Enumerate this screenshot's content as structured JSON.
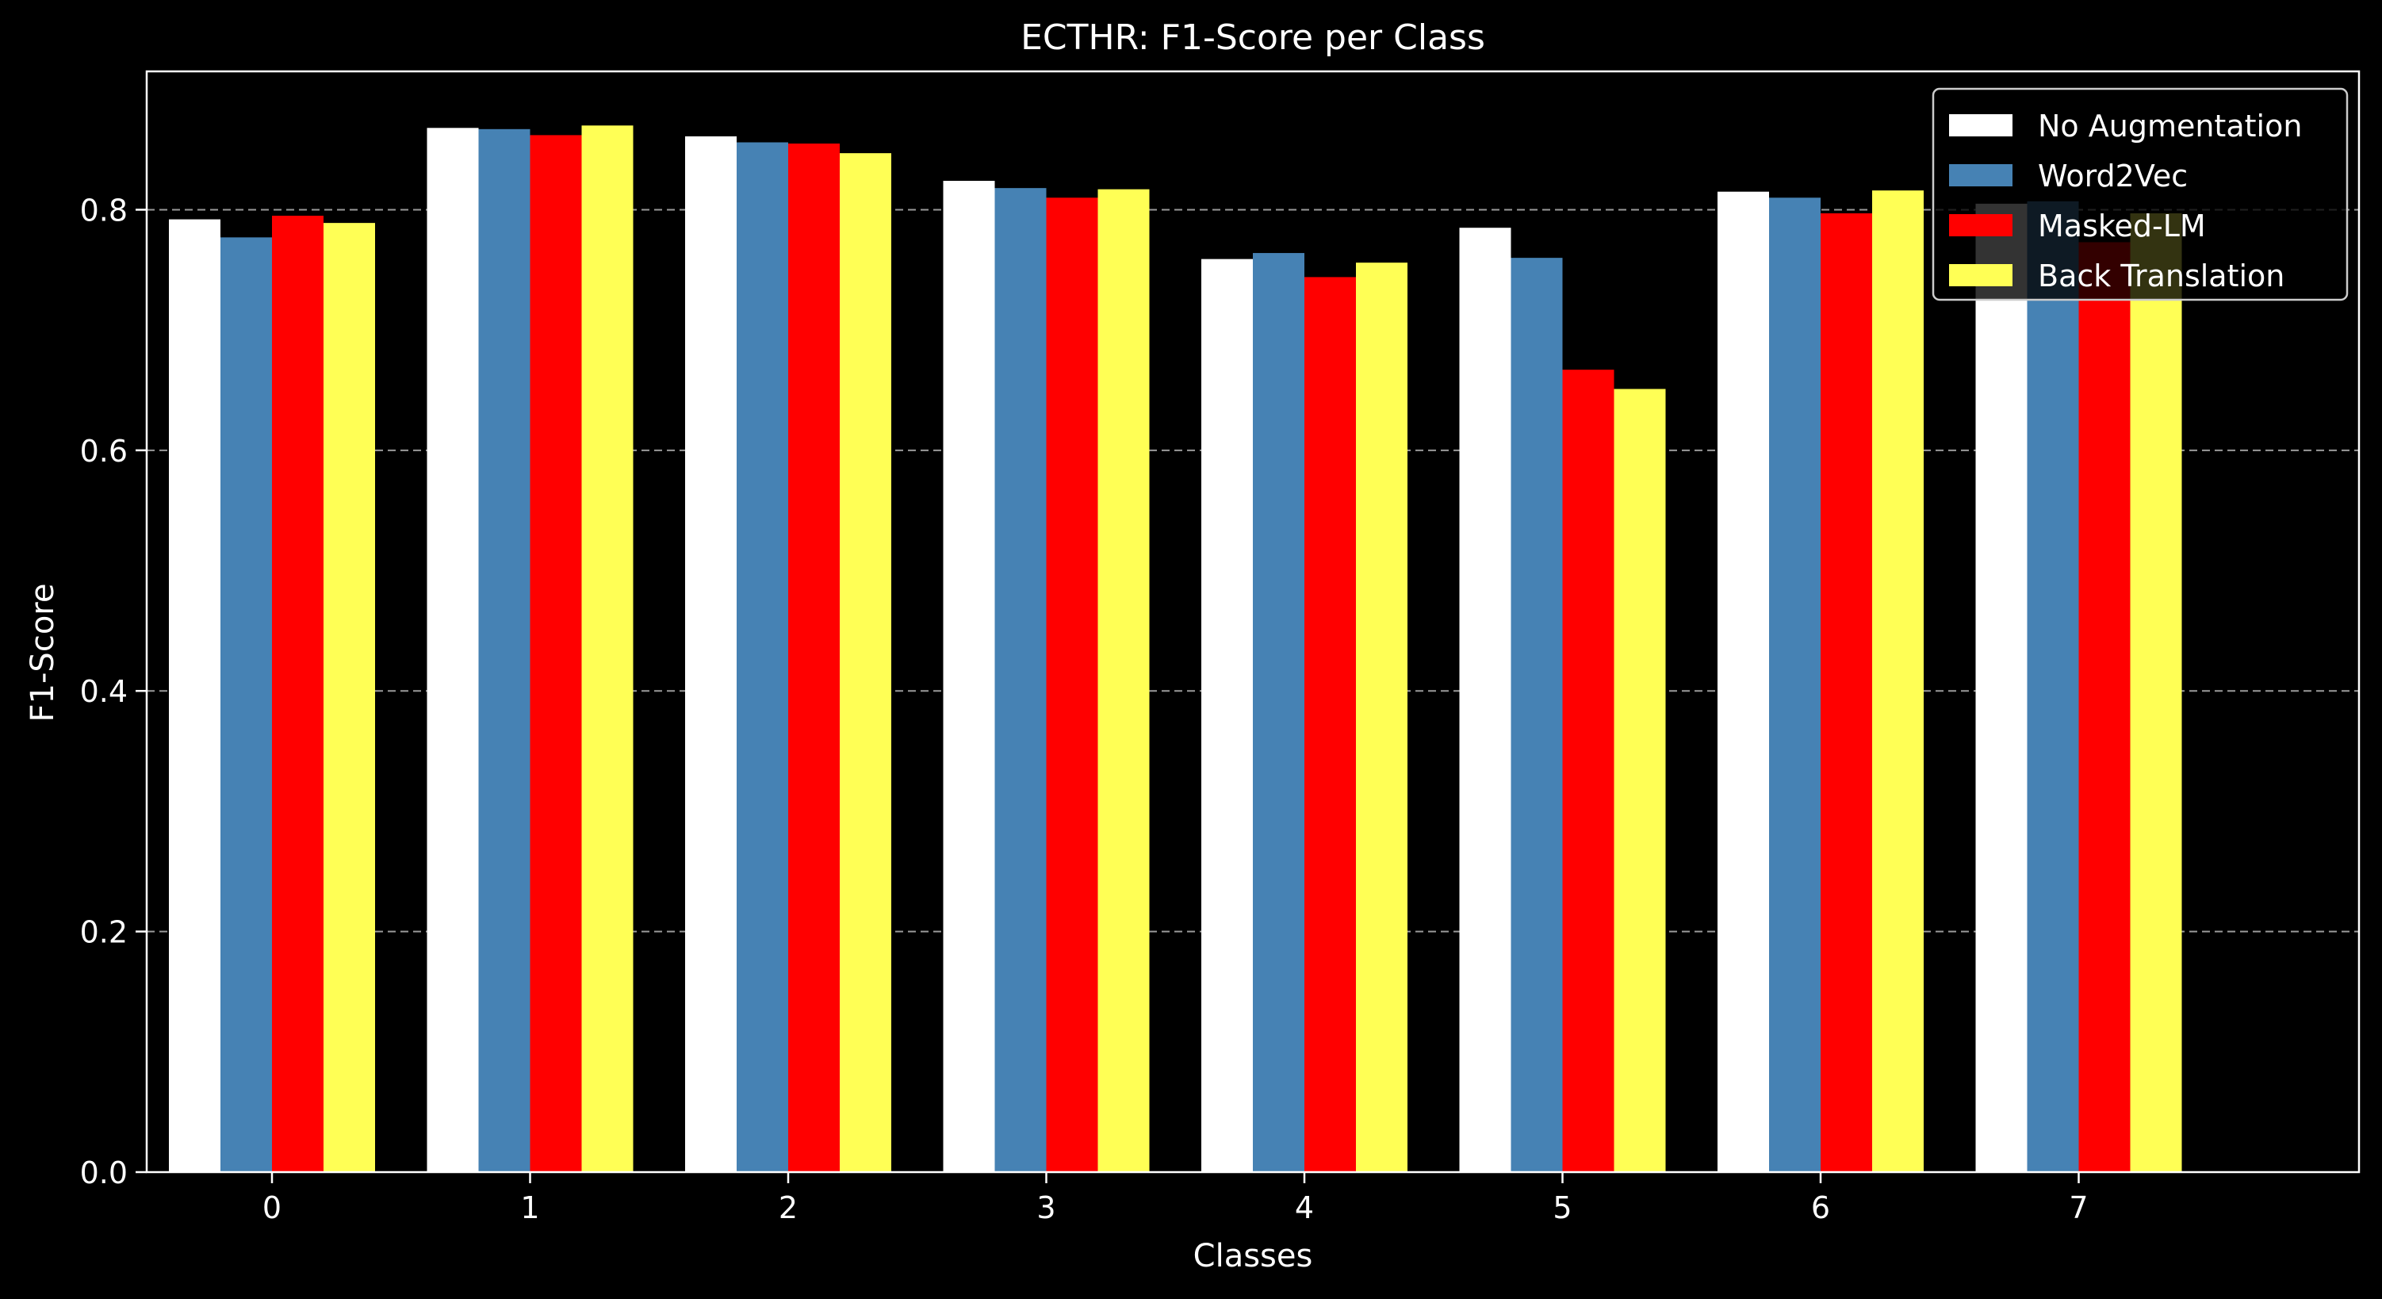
{
  "chart_data": {
    "type": "bar",
    "title": "ECTHR: F1-Score per Class",
    "xlabel": "Classes",
    "ylabel": "F1-Score",
    "categories": [
      "0",
      "1",
      "2",
      "3",
      "4",
      "5",
      "6",
      "7"
    ],
    "yticks": [
      "0.0",
      "0.2",
      "0.4",
      "0.6",
      "0.8"
    ],
    "ylim": [
      0,
      0.915
    ],
    "grid": "y-dashed",
    "legend_position": "top-right",
    "series": [
      {
        "name": "No Augmentation",
        "color": "#ffffff",
        "values": [
          0.792,
          0.868,
          0.861,
          0.824,
          0.759,
          0.785,
          0.815,
          0.805
        ]
      },
      {
        "name": "Word2Vec",
        "color": "#4682b4",
        "values": [
          0.777,
          0.867,
          0.856,
          0.818,
          0.764,
          0.76,
          0.81,
          0.807
        ]
      },
      {
        "name": "Masked-LM",
        "color": "#ff0000",
        "values": [
          0.795,
          0.862,
          0.855,
          0.81,
          0.744,
          0.667,
          0.797,
          0.773
        ]
      },
      {
        "name": "Back Translation",
        "color": "#ffff55",
        "values": [
          0.789,
          0.87,
          0.847,
          0.817,
          0.756,
          0.651,
          0.816,
          0.797
        ]
      }
    ]
  }
}
